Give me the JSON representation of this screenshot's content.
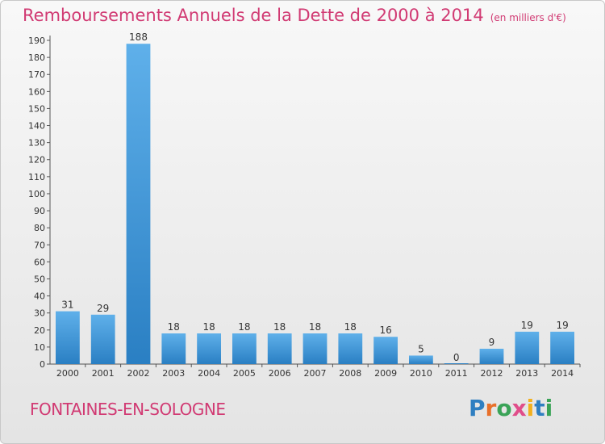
{
  "header": {
    "title": "Remboursements Annuels de la Dette de 2000 à 2014",
    "subtitle": "(en milliers d'€)"
  },
  "footer": {
    "commune": "FONTAINES-EN-SOLOGNE",
    "logo_letters": [
      "P",
      "r",
      "o",
      "x",
      "i",
      "t",
      "i"
    ],
    "logo_colors": [
      "#2f7fc1",
      "#e8702a",
      "#3aa357",
      "#e04d8a",
      "#f2b01e",
      "#2f7fc1",
      "#3aa357"
    ]
  },
  "colors": {
    "bar_top": "#5fb0ea",
    "bar_bottom": "#2a7fc3",
    "axis": "#555555",
    "grid": "#cccccc"
  },
  "chart_data": {
    "type": "bar",
    "title": "Remboursements Annuels de la Dette de 2000 à 2014",
    "categories": [
      "2000",
      "2001",
      "2002",
      "2003",
      "2004",
      "2005",
      "2006",
      "2007",
      "2008",
      "2009",
      "2010",
      "2011",
      "2012",
      "2013",
      "2014"
    ],
    "values": [
      31,
      29,
      188,
      18,
      18,
      18,
      18,
      18,
      18,
      16,
      5,
      0,
      9,
      19,
      19
    ],
    "ylim": [
      0,
      190
    ],
    "yticks": [
      0,
      10,
      20,
      30,
      40,
      50,
      60,
      70,
      80,
      90,
      100,
      110,
      120,
      130,
      140,
      150,
      160,
      170,
      180,
      190
    ],
    "grid": false,
    "legend": "none"
  }
}
